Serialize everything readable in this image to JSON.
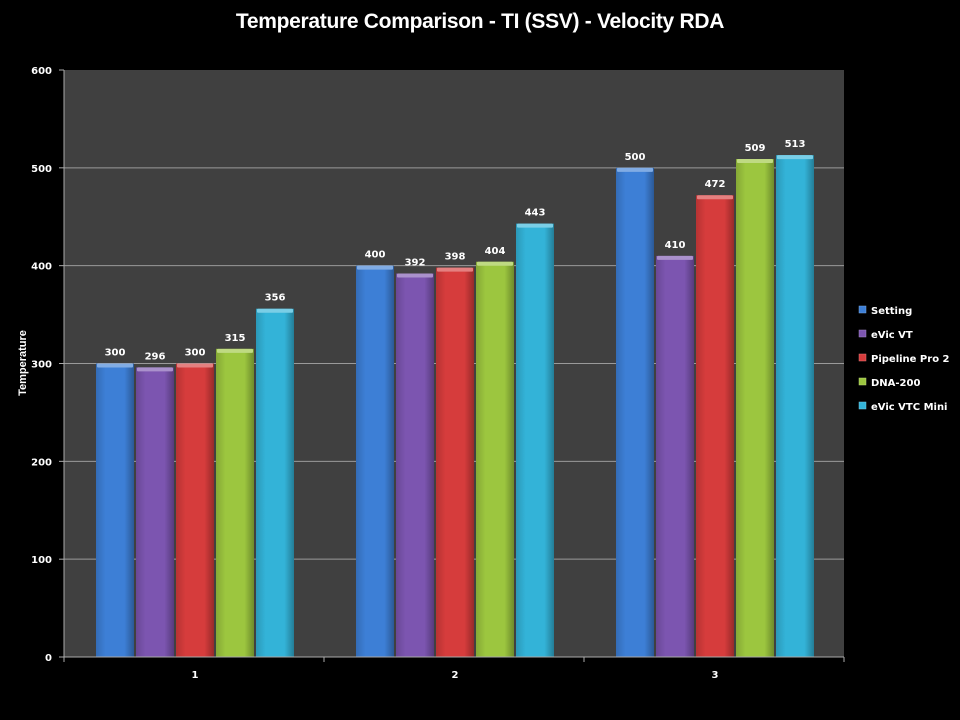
{
  "chart_data": {
    "type": "bar",
    "title": "Temperature Comparison - TI (SSV) - Velocity RDA",
    "xlabel": "",
    "ylabel": "Temperature",
    "ylim": [
      0,
      600
    ],
    "yticks": [
      0,
      100,
      200,
      300,
      400,
      500,
      600
    ],
    "grid": true,
    "legend_position": "right",
    "categories": [
      "1",
      "2",
      "3"
    ],
    "series": [
      {
        "name": "Setting",
        "color": "#3d7fd6",
        "values": [
          300,
          400,
          500
        ]
      },
      {
        "name": "eVic VT",
        "color": "#7c55b0",
        "values": [
          296,
          392,
          410
        ]
      },
      {
        "name": "Pipeline Pro 2",
        "color": "#d63c3c",
        "values": [
          300,
          398,
          472
        ]
      },
      {
        "name": "DNA-200",
        "color": "#9cc63f",
        "values": [
          315,
          404,
          509
        ]
      },
      {
        "name": "eVic VTC Mini",
        "color": "#33b3d8",
        "values": [
          356,
          443,
          513
        ]
      }
    ],
    "plot_background": "#404040",
    "gridline_color": "#9a9a9a"
  }
}
